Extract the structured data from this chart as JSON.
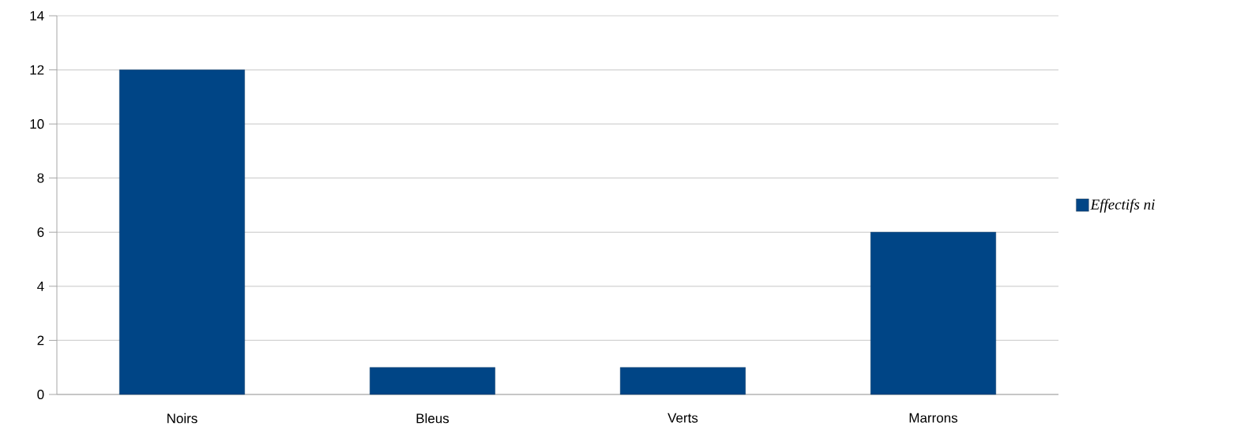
{
  "chart_data": {
    "type": "bar",
    "categories": [
      "Noirs",
      "Bleus",
      "Verts",
      "Marrons"
    ],
    "series": [
      {
        "name": "Effectifs ni",
        "color": "#004586",
        "values": [
          12,
          1,
          1,
          6
        ]
      }
    ],
    "ylim": [
      0,
      14
    ],
    "yticks": [
      0,
      2,
      4,
      6,
      8,
      10,
      12,
      14
    ],
    "grid": "y",
    "legend": "right"
  }
}
